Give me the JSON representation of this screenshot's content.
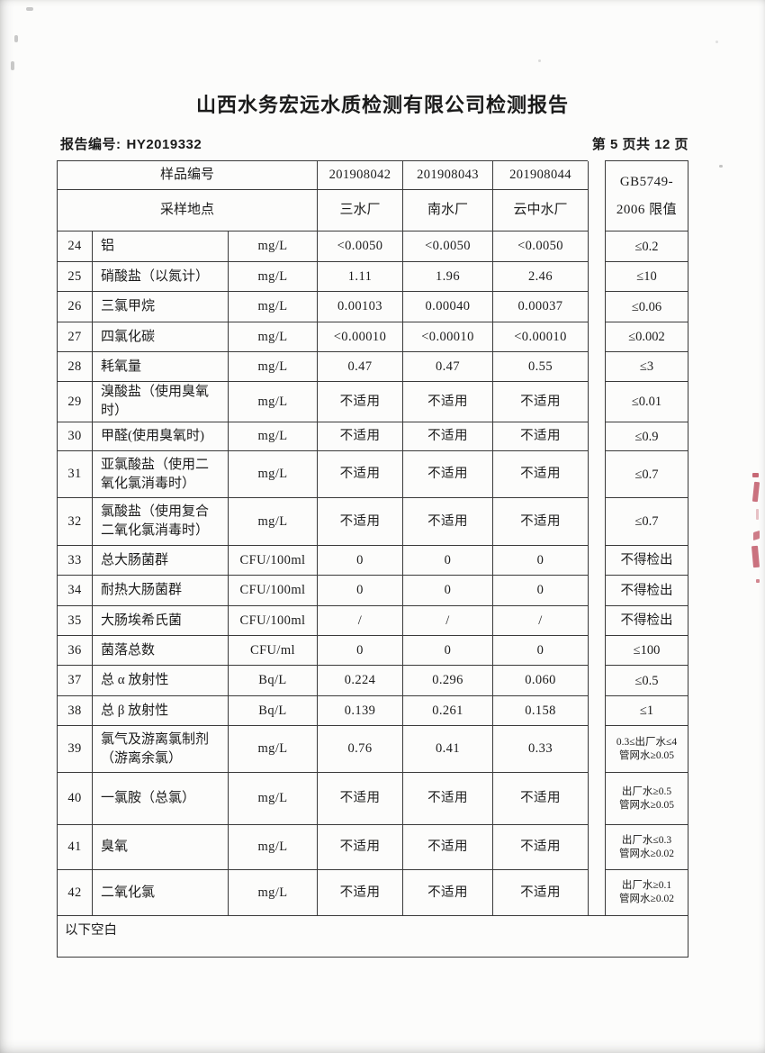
{
  "page": {
    "title": "山西水务宏远水质检测有限公司检测报告",
    "report_no_label": "报告编号:",
    "report_no": "HY2019332",
    "page_info": "第 5 页共 12 页"
  },
  "table": {
    "header": {
      "sample_id_label": "样品编号",
      "sample_ids": [
        "201908042",
        "201908043",
        "201908044"
      ],
      "location_label": "采样地点",
      "locations": [
        "三水厂",
        "南水厂",
        "云中水厂"
      ],
      "limit_title_line1": "GB5749-",
      "limit_title_line2": "2006 限值"
    },
    "rows": [
      {
        "no": "24",
        "name": "铝",
        "unit": "mg/L",
        "values": [
          "<0.0050",
          "<0.0050",
          "<0.0050"
        ],
        "limit": "≤0.2"
      },
      {
        "no": "25",
        "name": "硝酸盐（以氮计）",
        "unit": "mg/L",
        "values": [
          "1.11",
          "1.96",
          "2.46"
        ],
        "limit": "≤10"
      },
      {
        "no": "26",
        "name": "三氯甲烷",
        "unit": "mg/L",
        "values": [
          "0.00103",
          "0.00040",
          "0.00037"
        ],
        "limit": "≤0.06"
      },
      {
        "no": "27",
        "name": "四氯化碳",
        "unit": "mg/L",
        "values": [
          "<0.00010",
          "<0.00010",
          "<0.00010"
        ],
        "limit": "≤0.002"
      },
      {
        "no": "28",
        "name": "耗氧量",
        "unit": "mg/L",
        "values": [
          "0.47",
          "0.47",
          "0.55"
        ],
        "limit": "≤3"
      },
      {
        "no": "29",
        "name": "溴酸盐（使用臭氧\n时）",
        "unit": "mg/L",
        "values": [
          "不适用",
          "不适用",
          "不适用"
        ],
        "limit": "≤0.01"
      },
      {
        "no": "30",
        "name": "甲醛(使用臭氧时)",
        "unit": "mg/L",
        "values": [
          "不适用",
          "不适用",
          "不适用"
        ],
        "limit": "≤0.9"
      },
      {
        "no": "31",
        "name": "亚氯酸盐（使用二\n氧化氯消毒时）",
        "unit": "mg/L",
        "values": [
          "不适用",
          "不适用",
          "不适用"
        ],
        "limit": "≤0.7"
      },
      {
        "no": "32",
        "name": "氯酸盐（使用复合\n二氧化氯消毒时）",
        "unit": "mg/L",
        "values": [
          "不适用",
          "不适用",
          "不适用"
        ],
        "limit": "≤0.7"
      },
      {
        "no": "33",
        "name": "总大肠菌群",
        "unit": "CFU/100ml",
        "values": [
          "0",
          "0",
          "0"
        ],
        "limit": "不得检出"
      },
      {
        "no": "34",
        "name": "耐热大肠菌群",
        "unit": "CFU/100ml",
        "values": [
          "0",
          "0",
          "0"
        ],
        "limit": "不得检出"
      },
      {
        "no": "35",
        "name": "大肠埃希氏菌",
        "unit": "CFU/100ml",
        "values": [
          "/",
          "/",
          "/"
        ],
        "limit": "不得检出"
      },
      {
        "no": "36",
        "name": "菌落总数",
        "unit": "CFU/ml",
        "values": [
          "0",
          "0",
          "0"
        ],
        "limit": "≤100"
      },
      {
        "no": "37",
        "name": "总 α 放射性",
        "unit": "Bq/L",
        "values": [
          "0.224",
          "0.296",
          "0.060"
        ],
        "limit": "≤0.5"
      },
      {
        "no": "38",
        "name": "总 β 放射性",
        "unit": "Bq/L",
        "values": [
          "0.139",
          "0.261",
          "0.158"
        ],
        "limit": "≤1"
      },
      {
        "no": "39",
        "name": "氯气及游离氯制剂\n（游离余氯）",
        "unit": "mg/L",
        "values": [
          "0.76",
          "0.41",
          "0.33"
        ],
        "limit": "0.3≤出厂水≤4\n管网水≥0.05"
      },
      {
        "no": "40",
        "name": "一氯胺（总氯）",
        "unit": "mg/L",
        "values": [
          "不适用",
          "不适用",
          "不适用"
        ],
        "limit": "出厂水≥0.5\n管网水≥0.05"
      },
      {
        "no": "41",
        "name": "臭氧",
        "unit": "mg/L",
        "values": [
          "不适用",
          "不适用",
          "不适用"
        ],
        "limit": "出厂水≤0.3\n管网水≥0.02"
      },
      {
        "no": "42",
        "name": "二氧化氯",
        "unit": "mg/L",
        "values": [
          "不适用",
          "不适用",
          "不适用"
        ],
        "limit": "出厂水≥0.1\n管网水≥0.02"
      }
    ],
    "footer_note": "以下空白"
  },
  "colors": {
    "table_line": "#3a3a3a",
    "ink": "#1b1b1b",
    "paper": "#fcfcfb",
    "stamp": "#b5384a"
  }
}
